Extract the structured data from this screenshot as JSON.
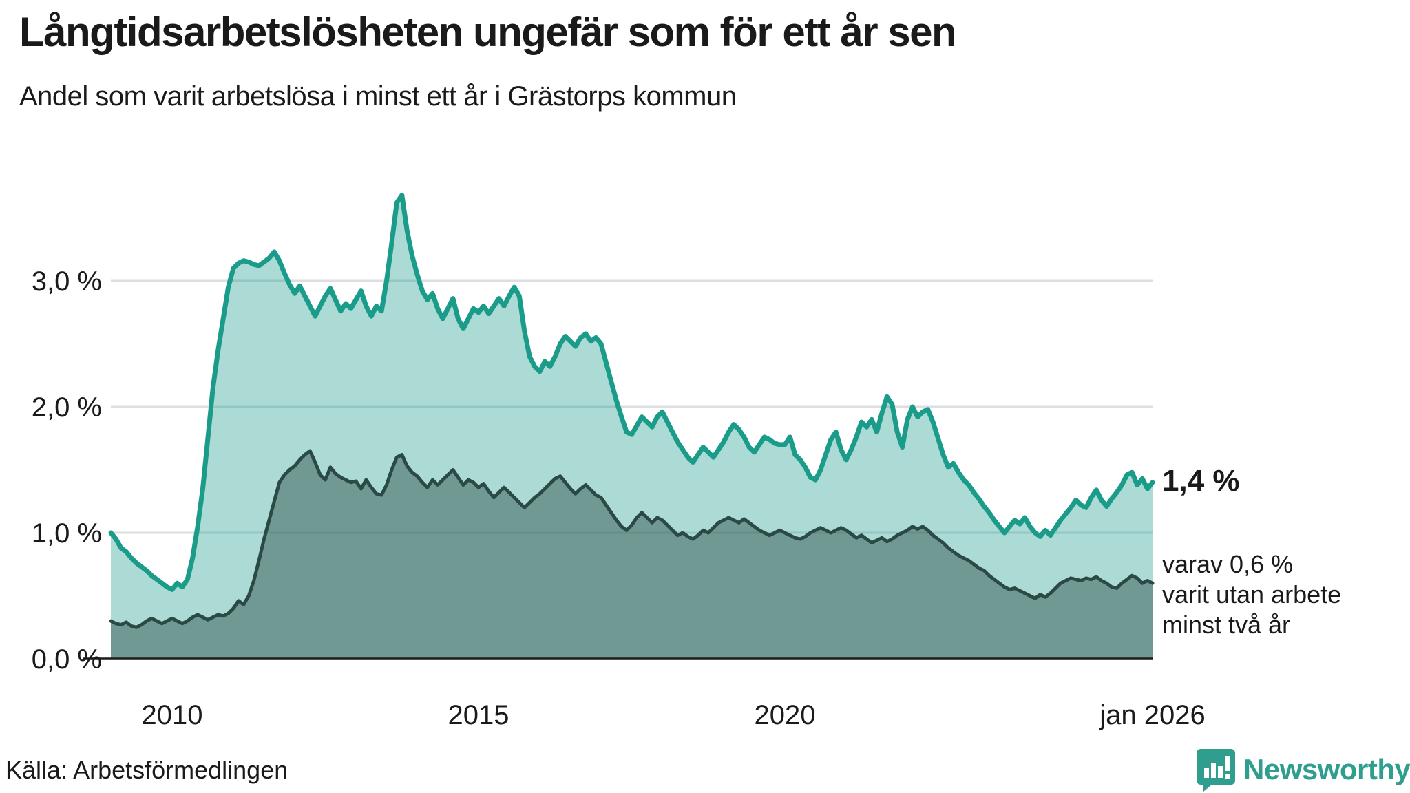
{
  "header": {
    "title": "Långtidsarbetslösheten ungefär som för ett år sen",
    "subtitle": "Andel som varit arbetslösa i minst ett år i Grästorps kommun"
  },
  "annotations": {
    "end_value_label": "1,4 %",
    "note_line1": "varav 0,6 %",
    "note_line2": "varit utan arbete",
    "note_line3": "minst två år"
  },
  "footer": {
    "source": "Källa: Arbetsförmedlingen",
    "logo_text": "Newsworthy"
  },
  "colors": {
    "accent_teal": "#1b9c8b",
    "teal_fill": "rgba(24,155,138,0.36)",
    "dark_line": "#2b4a45",
    "dark_fill": "rgba(43,74,69,0.45)",
    "gridline": "#dcdee1",
    "axis": "#1a1a1a",
    "text": "#1a1a1a",
    "logo_teal": "#2f9e8e"
  },
  "chart_data": {
    "type": "area",
    "title": "Långtidsarbetslösheten ungefär som för ett år sen",
    "subtitle_as_ylabel": "Andel som varit arbetslösa i minst ett år i Grästorps kommun",
    "x_start_year": 2009,
    "x_end_year": 2026,
    "points_per_year": 12,
    "ylim": [
      0,
      3.8
    ],
    "grid": true,
    "legend_position": "right-annotations",
    "y_ticks": [
      {
        "value": 3,
        "label": "3,0 %"
      },
      {
        "value": 2,
        "label": "2,0 %"
      },
      {
        "value": 1,
        "label": "1,0 %"
      },
      {
        "value": 0,
        "label": "0,0 %"
      }
    ],
    "x_ticks": [
      {
        "year": 2010,
        "label": "2010"
      },
      {
        "year": 2015,
        "label": "2015"
      },
      {
        "year": 2020,
        "label": "2020"
      },
      {
        "year": 2026,
        "label": "jan 2026"
      }
    ],
    "series": [
      {
        "name": "Arbetslösa minst ett år",
        "end_value_pct": 1.4,
        "values": [
          1.0,
          0.95,
          0.88,
          0.85,
          0.8,
          0.76,
          0.73,
          0.7,
          0.66,
          0.63,
          0.6,
          0.57,
          0.55,
          0.6,
          0.57,
          0.63,
          0.8,
          1.05,
          1.35,
          1.75,
          2.15,
          2.45,
          2.7,
          2.95,
          3.1,
          3.14,
          3.16,
          3.15,
          3.13,
          3.12,
          3.15,
          3.18,
          3.23,
          3.16,
          3.06,
          2.97,
          2.9,
          2.96,
          2.88,
          2.8,
          2.72,
          2.8,
          2.88,
          2.94,
          2.85,
          2.76,
          2.82,
          2.78,
          2.85,
          2.92,
          2.8,
          2.72,
          2.8,
          2.76,
          3.0,
          3.3,
          3.62,
          3.68,
          3.4,
          3.2,
          3.05,
          2.92,
          2.85,
          2.9,
          2.78,
          2.7,
          2.78,
          2.86,
          2.7,
          2.62,
          2.7,
          2.78,
          2.75,
          2.8,
          2.74,
          2.8,
          2.86,
          2.8,
          2.88,
          2.95,
          2.88,
          2.6,
          2.4,
          2.32,
          2.28,
          2.36,
          2.32,
          2.4,
          2.5,
          2.56,
          2.52,
          2.48,
          2.55,
          2.58,
          2.52,
          2.55,
          2.5,
          2.35,
          2.2,
          2.05,
          1.92,
          1.8,
          1.78,
          1.85,
          1.92,
          1.88,
          1.84,
          1.92,
          1.96,
          1.88,
          1.8,
          1.72,
          1.66,
          1.6,
          1.56,
          1.62,
          1.68,
          1.64,
          1.6,
          1.66,
          1.72,
          1.8,
          1.86,
          1.82,
          1.76,
          1.68,
          1.64,
          1.7,
          1.76,
          1.74,
          1.71,
          1.7,
          1.7,
          1.76,
          1.62,
          1.58,
          1.52,
          1.44,
          1.42,
          1.5,
          1.62,
          1.74,
          1.8,
          1.66,
          1.58,
          1.66,
          1.76,
          1.88,
          1.84,
          1.9,
          1.8,
          1.95,
          2.08,
          2.02,
          1.8,
          1.68,
          1.9,
          2.0,
          1.92,
          1.96,
          1.98,
          1.88,
          1.75,
          1.62,
          1.52,
          1.55,
          1.48,
          1.42,
          1.38,
          1.32,
          1.27,
          1.21,
          1.16,
          1.1,
          1.05,
          1.0,
          1.05,
          1.1,
          1.07,
          1.12,
          1.05,
          1.0,
          0.97,
          1.02,
          0.98,
          1.04,
          1.1,
          1.15,
          1.2,
          1.26,
          1.22,
          1.2,
          1.28,
          1.34,
          1.26,
          1.21,
          1.27,
          1.32,
          1.38,
          1.46,
          1.48,
          1.38,
          1.43,
          1.35,
          1.4
        ]
      },
      {
        "name": "Arbetslösa minst två år",
        "end_value_pct": 0.6,
        "values": [
          0.3,
          0.28,
          0.27,
          0.29,
          0.26,
          0.25,
          0.27,
          0.3,
          0.32,
          0.3,
          0.28,
          0.3,
          0.32,
          0.3,
          0.28,
          0.3,
          0.33,
          0.35,
          0.33,
          0.31,
          0.33,
          0.35,
          0.34,
          0.36,
          0.4,
          0.46,
          0.43,
          0.5,
          0.62,
          0.78,
          0.95,
          1.1,
          1.25,
          1.4,
          1.46,
          1.5,
          1.53,
          1.58,
          1.62,
          1.65,
          1.56,
          1.46,
          1.42,
          1.52,
          1.47,
          1.44,
          1.42,
          1.4,
          1.41,
          1.35,
          1.42,
          1.36,
          1.31,
          1.3,
          1.38,
          1.5,
          1.6,
          1.62,
          1.53,
          1.48,
          1.45,
          1.4,
          1.36,
          1.42,
          1.38,
          1.42,
          1.46,
          1.5,
          1.44,
          1.38,
          1.42,
          1.4,
          1.36,
          1.39,
          1.33,
          1.28,
          1.32,
          1.36,
          1.32,
          1.28,
          1.24,
          1.2,
          1.24,
          1.28,
          1.31,
          1.35,
          1.39,
          1.43,
          1.45,
          1.4,
          1.35,
          1.31,
          1.35,
          1.38,
          1.34,
          1.3,
          1.28,
          1.22,
          1.16,
          1.1,
          1.05,
          1.02,
          1.06,
          1.12,
          1.16,
          1.12,
          1.08,
          1.12,
          1.1,
          1.06,
          1.02,
          0.98,
          1.0,
          0.97,
          0.95,
          0.98,
          1.02,
          1.0,
          1.04,
          1.08,
          1.1,
          1.12,
          1.1,
          1.08,
          1.11,
          1.08,
          1.05,
          1.02,
          1.0,
          0.98,
          1.0,
          1.02,
          1.0,
          0.98,
          0.96,
          0.95,
          0.97,
          1.0,
          1.02,
          1.04,
          1.02,
          1.0,
          1.02,
          1.04,
          1.02,
          0.99,
          0.96,
          0.98,
          0.95,
          0.92,
          0.94,
          0.96,
          0.93,
          0.95,
          0.98,
          1.0,
          1.02,
          1.05,
          1.03,
          1.05,
          1.02,
          0.98,
          0.95,
          0.92,
          0.88,
          0.85,
          0.82,
          0.8,
          0.78,
          0.75,
          0.72,
          0.7,
          0.66,
          0.63,
          0.6,
          0.57,
          0.55,
          0.56,
          0.54,
          0.52,
          0.5,
          0.48,
          0.51,
          0.49,
          0.52,
          0.56,
          0.6,
          0.62,
          0.64,
          0.63,
          0.62,
          0.64,
          0.63,
          0.65,
          0.62,
          0.6,
          0.57,
          0.56,
          0.6,
          0.63,
          0.66,
          0.64,
          0.6,
          0.62,
          0.6
        ]
      }
    ]
  }
}
